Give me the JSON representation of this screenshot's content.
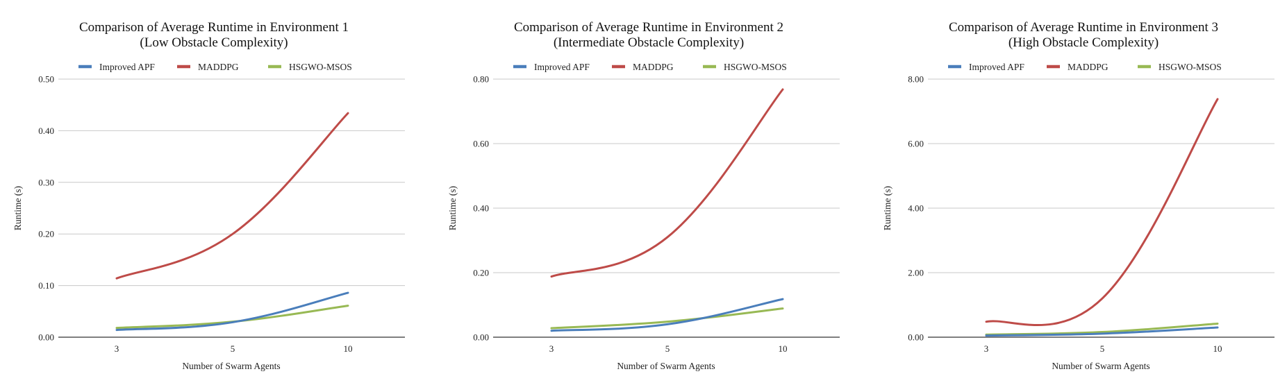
{
  "chart_data": [
    {
      "type": "line",
      "title": "Comparison of Average Runtime in Environment 1",
      "subtitle": "(Low Obstacle Complexity)",
      "xlabel": "Number of Swarm Agents",
      "ylabel": "Runtime (s)",
      "categories": [
        "3",
        "5",
        "10"
      ],
      "yticks": [
        "0.00",
        "0.10",
        "0.20",
        "0.30",
        "0.40",
        "0.50"
      ],
      "ylim": [
        0,
        0.5
      ],
      "grid": true,
      "legend_position": "top",
      "series": [
        {
          "name": "Improved APF",
          "color": "#4a7ebb",
          "values": [
            0.014,
            0.029,
            0.086
          ]
        },
        {
          "name": "MADDPG",
          "color": "#be4b48",
          "values": [
            0.114,
            0.2,
            0.434
          ]
        },
        {
          "name": "HSGWO-MSOS",
          "color": "#98b954",
          "values": [
            0.018,
            0.03,
            0.061
          ]
        }
      ]
    },
    {
      "type": "line",
      "title": "Comparison of Average Runtime in Environment 2",
      "subtitle": "(Intermediate Obstacle Complexity)",
      "xlabel": "Number of Swarm Agents",
      "ylabel": "Runtime (s)",
      "categories": [
        "3",
        "5",
        "10"
      ],
      "yticks": [
        "0.00",
        "0.20",
        "0.40",
        "0.60",
        "0.80"
      ],
      "ylim": [
        0,
        0.8
      ],
      "grid": true,
      "legend_position": "top",
      "series": [
        {
          "name": "Improved APF",
          "color": "#4a7ebb",
          "values": [
            0.02,
            0.04,
            0.118
          ]
        },
        {
          "name": "MADDPG",
          "color": "#be4b48",
          "values": [
            0.188,
            0.31,
            0.768
          ]
        },
        {
          "name": "HSGWO-MSOS",
          "color": "#98b954",
          "values": [
            0.028,
            0.048,
            0.089
          ]
        }
      ]
    },
    {
      "type": "line",
      "title": "Comparison of Average Runtime in Environment 3",
      "subtitle": "(High Obstacle Complexity)",
      "xlabel": "Number of Swarm Agents",
      "ylabel": "Runtime (s)",
      "categories": [
        "3",
        "5",
        "10"
      ],
      "yticks": [
        "0.00",
        "2.00",
        "4.00",
        "6.00",
        "8.00"
      ],
      "ylim": [
        0,
        8
      ],
      "grid": true,
      "legend_position": "top",
      "series": [
        {
          "name": "Improved APF",
          "color": "#4a7ebb",
          "values": [
            0.05,
            0.11,
            0.3
          ]
        },
        {
          "name": "MADDPG",
          "color": "#be4b48",
          "values": [
            0.48,
            1.2,
            7.38
          ]
        },
        {
          "name": "HSGWO-MSOS",
          "color": "#98b954",
          "values": [
            0.08,
            0.16,
            0.42
          ]
        }
      ]
    }
  ]
}
